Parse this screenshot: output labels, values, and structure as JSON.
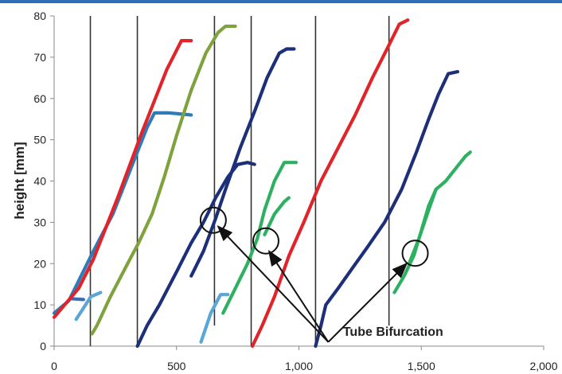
{
  "chart_data": {
    "type": "line",
    "title": "",
    "xlabel": "",
    "ylabel": "height [mm]",
    "xlim": [
      0,
      2000
    ],
    "ylim": [
      0,
      80
    ],
    "x_ticks": [
      0,
      500,
      1000,
      1500,
      2000
    ],
    "x_tick_labels": [
      "0",
      "500",
      "1,000",
      "1,500",
      "2,000"
    ],
    "y_ticks": [
      0,
      10,
      20,
      30,
      40,
      50,
      60,
      70,
      80
    ],
    "y_tick_labels": [
      "0",
      "10",
      "20",
      "30",
      "40",
      "50",
      "60",
      "70",
      "80"
    ],
    "grid": false,
    "legend": "none",
    "vertical_lines": [
      {
        "x": 148,
        "y_min": 0,
        "y_max": 80
      },
      {
        "x": 340,
        "y_min": 0,
        "y_max": 80
      },
      {
        "x": 655,
        "y_min": 5,
        "y_max": 80
      },
      {
        "x": 805,
        "y_min": 0,
        "y_max": 80
      },
      {
        "x": 1068,
        "y_min": 0,
        "y_max": 80
      },
      {
        "x": 1368,
        "y_min": 5,
        "y_max": 80
      }
    ],
    "series": [
      {
        "color": "#3a6fb5",
        "points": [
          [
            65,
            11.5
          ],
          [
            120,
            11.3
          ]
        ]
      },
      {
        "color": "#2d7bb8",
        "points": [
          [
            0,
            8
          ],
          [
            60,
            11
          ],
          [
            160,
            23
          ],
          [
            240,
            32
          ],
          [
            320,
            44
          ],
          [
            380,
            53
          ],
          [
            410,
            56.5
          ],
          [
            470,
            56.5
          ],
          [
            560,
            56
          ]
        ]
      },
      {
        "color": "#e0242a",
        "points": [
          [
            0,
            7
          ],
          [
            100,
            14
          ],
          [
            160,
            21
          ],
          [
            260,
            36
          ],
          [
            360,
            52
          ],
          [
            460,
            67
          ],
          [
            520,
            74
          ],
          [
            560,
            74
          ]
        ]
      },
      {
        "color": "#5aa6d6",
        "points": [
          [
            90,
            6.5
          ],
          [
            150,
            12
          ],
          [
            190,
            13
          ]
        ]
      },
      {
        "color": "#7fa33c",
        "points": [
          [
            155,
            3
          ],
          [
            175,
            5
          ],
          [
            230,
            12
          ],
          [
            300,
            20
          ],
          [
            345,
            25
          ],
          [
            400,
            32
          ],
          [
            450,
            41
          ],
          [
            500,
            51
          ],
          [
            560,
            62
          ],
          [
            620,
            71
          ],
          [
            670,
            76
          ],
          [
            700,
            77.5
          ],
          [
            740,
            77.5
          ]
        ]
      },
      {
        "color": "#1e2f7a",
        "points": [
          [
            340,
            0
          ],
          [
            380,
            5
          ],
          [
            430,
            10
          ],
          [
            500,
            18
          ],
          [
            560,
            25
          ],
          [
            610,
            30
          ],
          [
            660,
            36
          ],
          [
            710,
            41
          ],
          [
            750,
            44
          ],
          [
            790,
            44.5
          ],
          [
            820,
            44
          ]
        ]
      },
      {
        "color": "#1e2f7a",
        "points": [
          [
            560,
            17
          ],
          [
            610,
            23
          ],
          [
            660,
            31
          ],
          [
            700,
            38
          ],
          [
            760,
            48
          ],
          [
            820,
            57
          ],
          [
            870,
            65
          ],
          [
            920,
            71
          ],
          [
            950,
            72
          ],
          [
            980,
            72
          ]
        ]
      },
      {
        "color": "#5aa6d6",
        "points": [
          [
            600,
            1
          ],
          [
            640,
            8
          ],
          [
            680,
            12.5
          ],
          [
            710,
            12.5
          ]
        ]
      },
      {
        "color": "#2db060",
        "points": [
          [
            690,
            8
          ],
          [
            740,
            14
          ],
          [
            790,
            20
          ],
          [
            830,
            26
          ],
          [
            860,
            33
          ],
          [
            900,
            40
          ],
          [
            940,
            44.5
          ],
          [
            990,
            44.5
          ]
        ]
      },
      {
        "color": "#2db060",
        "points": [
          [
            860,
            27
          ],
          [
            900,
            32
          ],
          [
            940,
            35
          ],
          [
            960,
            36
          ]
        ]
      },
      {
        "color": "#e0242a",
        "points": [
          [
            810,
            0
          ],
          [
            850,
            5
          ],
          [
            900,
            12
          ],
          [
            960,
            22
          ],
          [
            1020,
            30
          ],
          [
            1090,
            40
          ],
          [
            1160,
            48
          ],
          [
            1230,
            56
          ],
          [
            1300,
            65
          ],
          [
            1360,
            72
          ],
          [
            1410,
            78
          ],
          [
            1445,
            79
          ]
        ]
      },
      {
        "color": "#1e2f7a",
        "points": [
          [
            1068,
            0
          ],
          [
            1090,
            5
          ],
          [
            1110,
            10
          ],
          [
            1160,
            14
          ],
          [
            1220,
            19
          ],
          [
            1280,
            24
          ],
          [
            1350,
            30
          ],
          [
            1420,
            38
          ],
          [
            1480,
            47
          ],
          [
            1530,
            55
          ],
          [
            1570,
            61
          ],
          [
            1610,
            66
          ],
          [
            1650,
            66.5
          ]
        ]
      },
      {
        "color": "#2db060",
        "points": [
          [
            1390,
            13
          ],
          [
            1430,
            17
          ],
          [
            1470,
            22
          ],
          [
            1500,
            28
          ],
          [
            1530,
            34
          ],
          [
            1560,
            38
          ],
          [
            1600,
            40
          ],
          [
            1640,
            43
          ],
          [
            1680,
            46
          ],
          [
            1700,
            47
          ]
        ]
      },
      {
        "color": "#2db060",
        "points": [
          [
            1450,
            20
          ],
          [
            1490,
            26
          ],
          [
            1530,
            33
          ],
          [
            1560,
            38
          ]
        ]
      }
    ],
    "annotations": [
      {
        "text": "Tube Bifurcation",
        "text_anchor_data": [
          1180,
          3.5
        ],
        "arrow_origin": [
          1120,
          1
        ],
        "circles_data": [
          [
            650,
            30.5
          ],
          [
            865,
            25.5
          ],
          [
            1475,
            22.5
          ]
        ],
        "arrow_targets": [
          [
            670,
            29
          ],
          [
            878,
            23
          ],
          [
            1440,
            20
          ]
        ]
      }
    ]
  }
}
